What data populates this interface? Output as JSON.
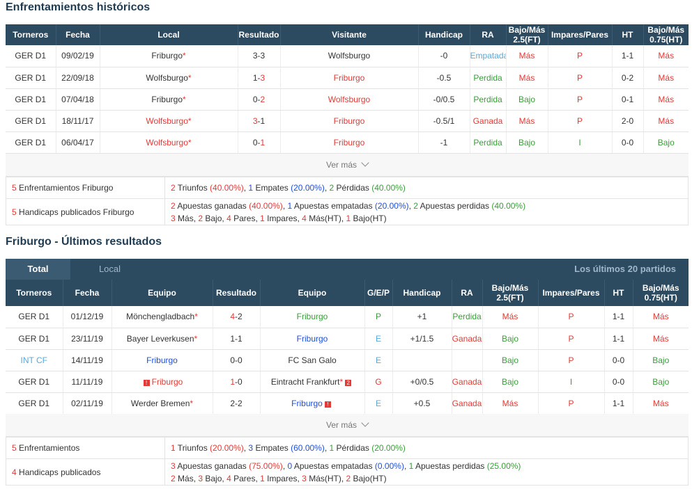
{
  "h2h": {
    "title": "Enfrentamientos históricos",
    "headers": [
      "Torneros",
      "Fecha",
      "Local",
      "Resultado",
      "Visitante",
      "Handicap",
      "RA",
      "Bajo/Más 2.5(FT)",
      "Impares/Pares",
      "HT",
      "Bajo/Más 0.75(HT)"
    ],
    "rows": [
      {
        "liga": "GER D1",
        "fecha": "09/02/19",
        "local": "Friburgo",
        "res_l": "3",
        "res_v": "3",
        "visitante": "Wolfsburgo",
        "handicap": "-0",
        "ra": "Empatada",
        "bm25": "Más",
        "ip": "P",
        "ht": "1-1",
        "bm075": "Más"
      },
      {
        "liga": "GER D1",
        "fecha": "22/09/18",
        "local": "Wolfsburgo",
        "res_l": "1",
        "res_v": "3",
        "visitante": "Friburgo",
        "handicap": "-0.5",
        "ra": "Perdida",
        "bm25": "Más",
        "ip": "P",
        "ht": "0-2",
        "bm075": "Más"
      },
      {
        "liga": "GER D1",
        "fecha": "07/04/18",
        "local": "Friburgo",
        "res_l": "0",
        "res_v": "2",
        "visitante": "Wolfsburgo",
        "handicap": "-0/0.5",
        "ra": "Perdida",
        "bm25": "Bajo",
        "ip": "P",
        "ht": "0-1",
        "bm075": "Más"
      },
      {
        "liga": "GER D1",
        "fecha": "18/11/17",
        "local": "Wolfsburgo",
        "res_l": "3",
        "res_v": "1",
        "visitante": "Friburgo",
        "handicap": "-0.5/1",
        "ra": "Ganada",
        "bm25": "Más",
        "ip": "P",
        "ht": "2-0",
        "bm075": "Más"
      },
      {
        "liga": "GER D1",
        "fecha": "06/04/17",
        "local": "Wolfsburgo",
        "res_l": "0",
        "res_v": "1",
        "visitante": "Friburgo",
        "handicap": "-1",
        "ra": "Perdida",
        "bm25": "Bajo",
        "ip": "I",
        "ht": "0-0",
        "bm075": "Bajo"
      }
    ],
    "ver_mas": "Ver más",
    "summary": {
      "enf_label": "Enfrentamientos Friburgo",
      "enf_count": "5",
      "enf": [
        "2",
        " Triunfos ",
        "(40.00%)",
        ", ",
        "1",
        " Empates ",
        "(20.00%)",
        ", ",
        "2",
        " Pérdidas ",
        "(40.00%)"
      ],
      "hc_label": "Handicaps publicados Friburgo",
      "hc_count": "5",
      "hc1": [
        "2",
        " Apuestas ganadas ",
        "(40.00%)",
        ", ",
        "1",
        " Apuestas empatadas ",
        "(20.00%)",
        ", ",
        "2",
        " Apuestas perdidas ",
        "(40.00%)"
      ],
      "hc2": [
        "3",
        " Más, ",
        "2",
        " Bajo, ",
        "4",
        " Pares, ",
        "1",
        " Impares, ",
        "4",
        " Más(HT), ",
        "1",
        " Bajo(HT)"
      ]
    }
  },
  "recent": {
    "title": "Friburgo - Últimos resultados",
    "tabs": {
      "total": "Total",
      "local": "Local",
      "right": "Los últimos 20 partidos"
    },
    "headers": [
      "Torneros",
      "Fecha",
      "Equipo",
      "Resultado",
      "Equipo",
      "G/E/P",
      "Handicap",
      "RA",
      "Bajo/Más 2.5(FT)",
      "Impares/Pares",
      "HT",
      "Bajo/Más 0.75(HT)"
    ],
    "rows": [
      {
        "liga": "GER D1",
        "fecha": "01/12/19",
        "local": "Mönchengladbach",
        "res_l": "4",
        "res_v": "2",
        "visitante": "Friburgo",
        "gep": "P",
        "handicap": "+1",
        "ra": "Perdida",
        "bm25": "Más",
        "ip": "P",
        "ht": "1-1",
        "bm075": "Más"
      },
      {
        "liga": "GER D1",
        "fecha": "23/11/19",
        "local": "Bayer Leverkusen",
        "res_l": "1",
        "res_v": "1",
        "visitante": "Friburgo",
        "gep": "E",
        "handicap": "+1/1.5",
        "ra": "Ganada",
        "bm25": "Bajo",
        "ip": "P",
        "ht": "1-1",
        "bm075": "Más"
      },
      {
        "liga": "INT CF",
        "fecha": "14/11/19",
        "local": "Friburgo",
        "res_l": "0",
        "res_v": "0",
        "visitante": "FC San Galo",
        "gep": "E",
        "handicap": "",
        "ra": "",
        "bm25": "Bajo",
        "ip": "P",
        "ht": "0-0",
        "bm075": "Bajo"
      },
      {
        "liga": "GER D1",
        "fecha": "11/11/19",
        "local": "Friburgo",
        "res_l": "1",
        "res_v": "0",
        "visitante": "Eintracht Frankfurt",
        "gep": "G",
        "handicap": "+0/0.5",
        "ra": "Ganada",
        "bm25": "Bajo",
        "ip": "I",
        "ht": "0-0",
        "bm075": "Bajo",
        "flag_local": "!",
        "flag_visit": "2"
      },
      {
        "liga": "GER D1",
        "fecha": "02/11/19",
        "local": "Werder Bremen",
        "res_l": "2",
        "res_v": "2",
        "visitante": "Friburgo",
        "gep": "E",
        "handicap": "+0.5",
        "ra": "Ganada",
        "bm25": "Más",
        "ip": "P",
        "ht": "1-1",
        "bm075": "Más",
        "flag_visit": "!"
      }
    ],
    "ver_mas": "Ver más",
    "summary": {
      "enf_label": "Enfrentamientos",
      "enf_count": "5",
      "enf": [
        "1",
        " Triunfos ",
        "(20.00%)",
        ", ",
        "3",
        " Empates ",
        "(60.00%)",
        ", ",
        "1",
        " Pérdidas ",
        "(20.00%)"
      ],
      "hc_label": "Handicaps publicados",
      "hc_count": "4",
      "hc1": [
        "3",
        " Apuestas ganadas ",
        "(75.00%)",
        ", ",
        "0",
        " Apuestas empatadas ",
        "(0.00%)",
        ", ",
        "1",
        " Apuestas perdidas ",
        "(25.00%)"
      ],
      "hc2": [
        "2",
        " Más, ",
        "3",
        " Bajo, ",
        "4",
        " Pares, ",
        "1",
        " Impares, ",
        "3",
        " Más(HT), ",
        "2",
        " Bajo(HT)"
      ]
    }
  },
  "colors": {
    "header_bg": "#2c4a60",
    "red": "#e53935",
    "blue": "#1e4fd8",
    "green": "#3a9d3a",
    "light_blue": "#5aa7d8"
  }
}
